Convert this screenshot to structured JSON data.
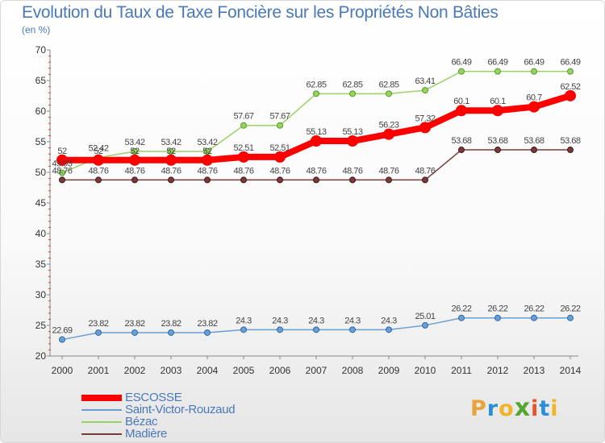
{
  "logo": {
    "text": "Proxiti",
    "letter_colors": [
      "#e8a33a",
      "#2a8fd6",
      "#f0b429",
      "#55a630",
      "#e8542c",
      "#2a8fd6",
      "#f0b429"
    ]
  },
  "chart_data": {
    "type": "line",
    "title": "Evolution du Taux de Taxe Foncière sur les Propriétés Non Bâties",
    "ylabel": "(en %)",
    "xlabel": "",
    "categories": [
      "2000",
      "2001",
      "2002",
      "2003",
      "2004",
      "2005",
      "2006",
      "2007",
      "2008",
      "2009",
      "2010",
      "2011",
      "2012",
      "2013",
      "2014"
    ],
    "yticks": [
      20,
      25,
      30,
      35,
      40,
      45,
      50,
      55,
      60,
      65,
      70
    ],
    "ylim": [
      20,
      70
    ],
    "grid": false,
    "legend_position": "bottom-left",
    "series": [
      {
        "name": "ESCOSSE",
        "color": "#ff0000",
        "values": [
          52,
          52,
          52,
          52,
          52,
          52.51,
          52.51,
          55.13,
          55.13,
          56.23,
          57.32,
          60.1,
          60.1,
          60.7,
          62.52
        ],
        "labels": [
          "52",
          "52",
          "52",
          "52",
          "52",
          "52.51",
          "52.51",
          "55.13",
          "55.13",
          "56.23",
          "57.32",
          "60.1",
          "60.1",
          "60.7",
          "62.52"
        ]
      },
      {
        "name": "Saint-Victor-Rouzaud",
        "color": "#6a9fd4",
        "values": [
          22.69,
          23.82,
          23.82,
          23.82,
          23.82,
          24.3,
          24.3,
          24.3,
          24.3,
          24.3,
          25.01,
          26.22,
          26.22,
          26.22,
          26.22
        ],
        "labels": [
          "22.69",
          "23.82",
          "23.82",
          "23.82",
          "23.82",
          "24.3",
          "24.3",
          "24.3",
          "24.3",
          "24.3",
          "25.01",
          "26.22",
          "26.22",
          "26.22",
          "26.22"
        ]
      },
      {
        "name": "Bézac",
        "color": "#99d266",
        "values": [
          49.93,
          52.42,
          53.42,
          53.42,
          53.42,
          57.67,
          57.67,
          62.85,
          62.85,
          62.85,
          63.41,
          66.49,
          66.49,
          66.49,
          66.49
        ],
        "labels": [
          "49.93",
          "52.42",
          "53.42",
          "53.42",
          "53.42",
          "57.67",
          "57.67",
          "62.85",
          "62.85",
          "62.85",
          "63.41",
          "66.49",
          "66.49",
          "66.49",
          "66.49"
        ]
      },
      {
        "name": "Madière",
        "color": "#7b3a3a",
        "values": [
          48.76,
          48.76,
          48.76,
          48.76,
          48.76,
          48.76,
          48.76,
          48.76,
          48.76,
          48.76,
          48.76,
          53.68,
          53.68,
          53.68,
          53.68
        ],
        "labels": [
          "48.76",
          "48.76",
          "48.76",
          "48.76",
          "48.76",
          "48.76",
          "48.76",
          "48.76",
          "48.76",
          "48.76",
          "48.76",
          "53.68",
          "53.68",
          "53.68",
          "53.68"
        ]
      }
    ]
  }
}
